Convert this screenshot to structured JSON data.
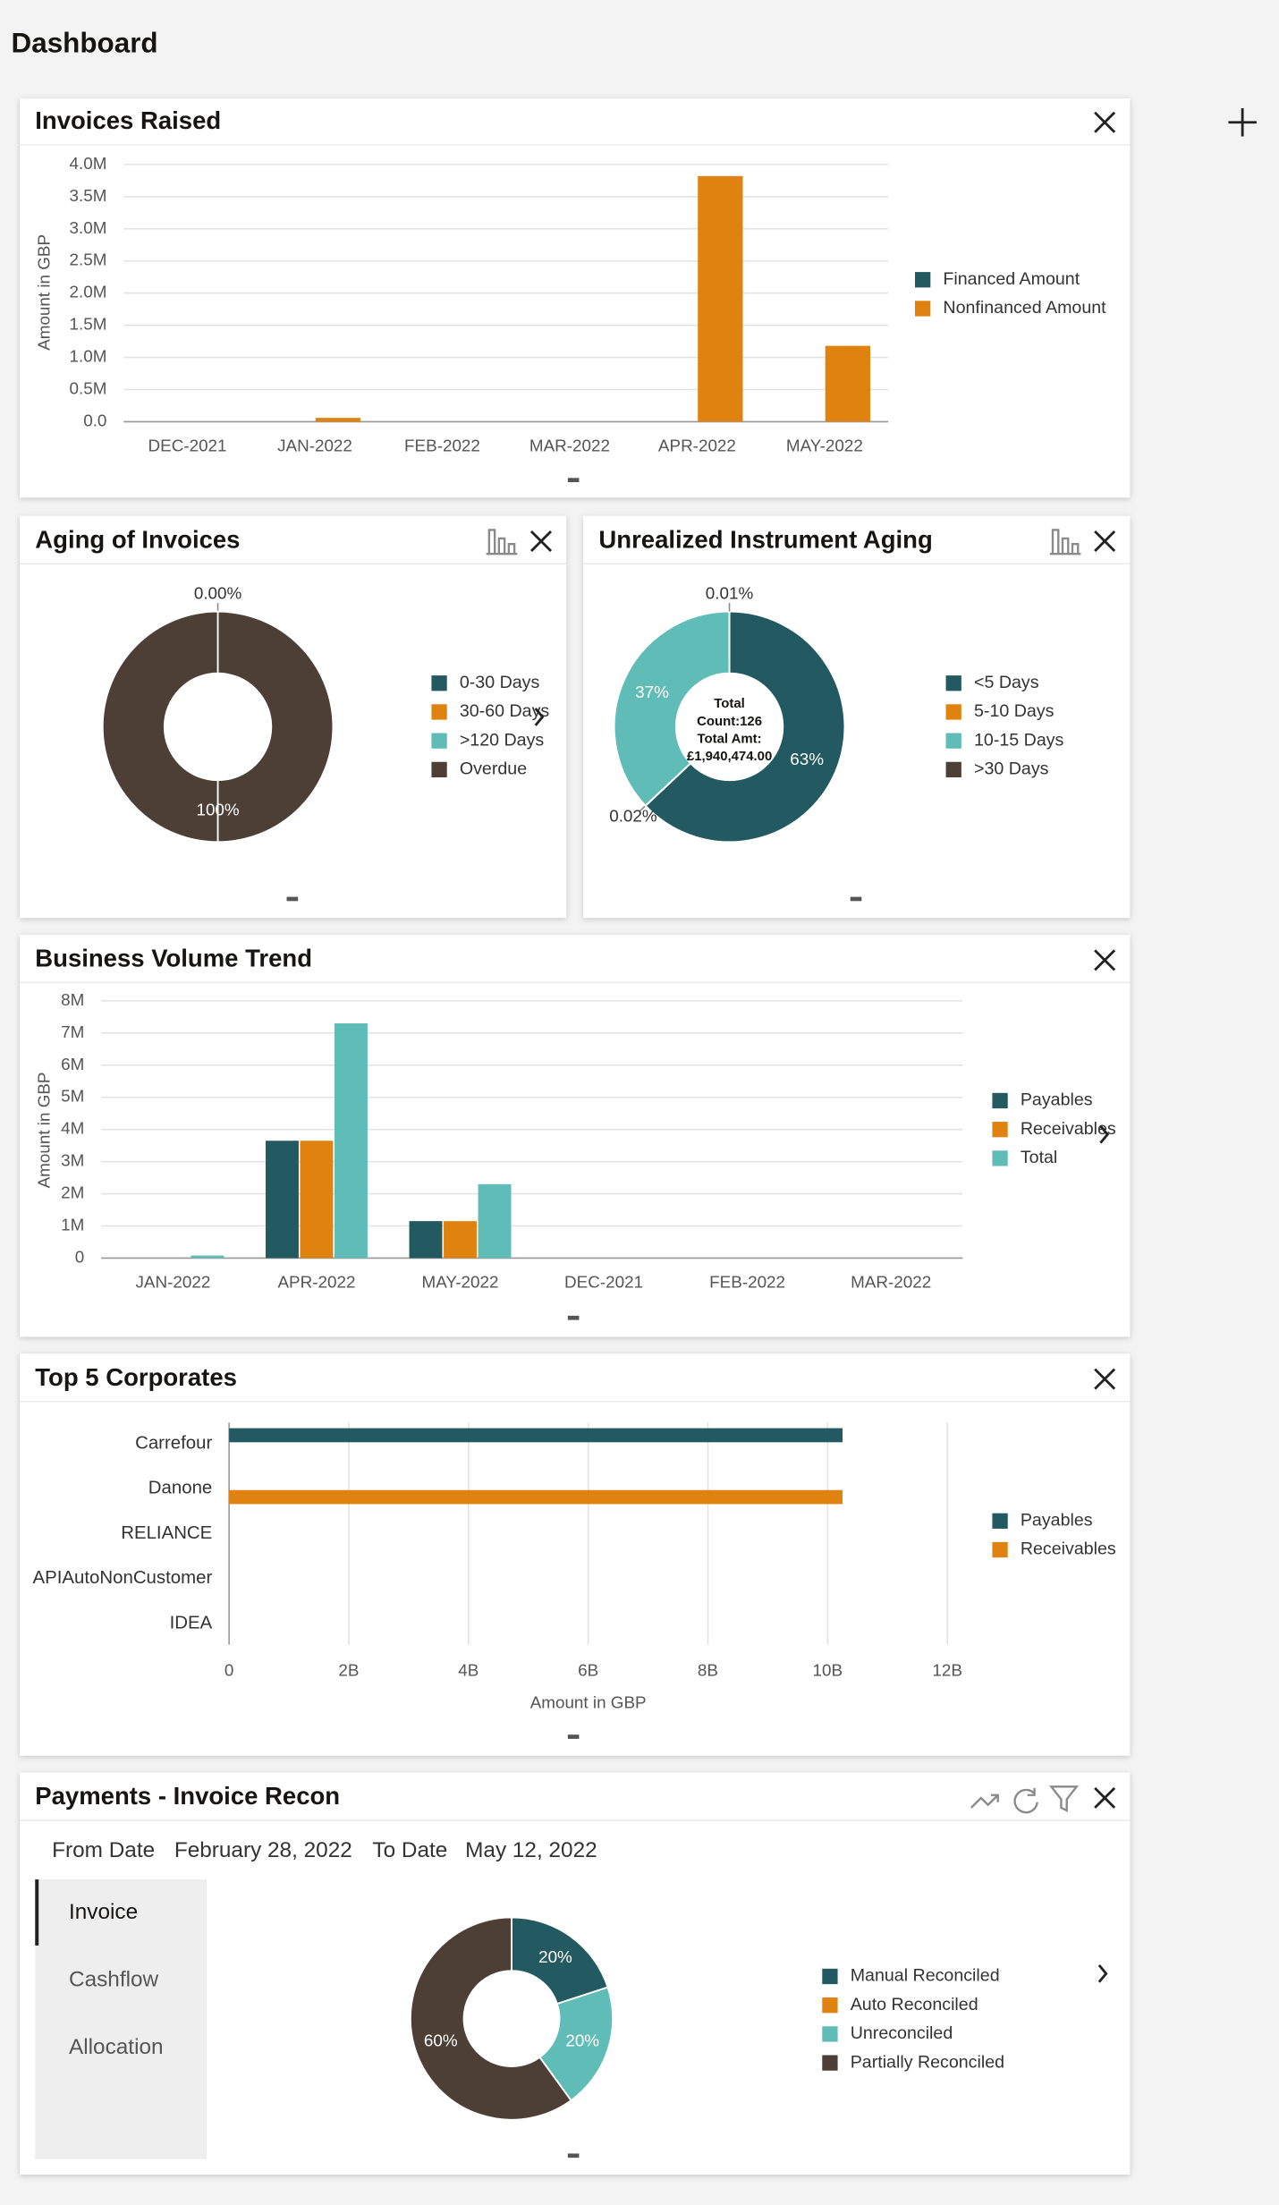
{
  "page_title": "Dashboard",
  "chart_data": [
    {
      "type": "bar",
      "title": "Invoices Raised",
      "y_label": "Amount in GBP",
      "categories": [
        "DEC-2021",
        "JAN-2022",
        "FEB-2022",
        "MAR-2022",
        "APR-2022",
        "MAY-2022"
      ],
      "series": [
        {
          "name": "Financed Amount",
          "color": "#235a61",
          "values": [
            0,
            0,
            0,
            0,
            0,
            0
          ]
        },
        {
          "name": "Nonfinanced Amount",
          "color": "#e0820f",
          "values": [
            0,
            60000,
            0,
            0,
            3820000,
            1180000
          ]
        }
      ],
      "ylim": [
        0,
        4000000
      ],
      "yticks": [
        {
          "value": 0,
          "label": "0.0"
        },
        {
          "value": 500000,
          "label": "0.5M"
        },
        {
          "value": 1000000,
          "label": "1.0M"
        },
        {
          "value": 1500000,
          "label": "1.5M"
        },
        {
          "value": 2000000,
          "label": "2.0M"
        },
        {
          "value": 2500000,
          "label": "2.5M"
        },
        {
          "value": 3000000,
          "label": "3.0M"
        },
        {
          "value": 3500000,
          "label": "3.5M"
        },
        {
          "value": 4000000,
          "label": "4.0M"
        }
      ],
      "grid": true,
      "legend": "right"
    },
    {
      "type": "donut",
      "title": "Aging of Invoices",
      "categories": [
        "0-30 Days",
        "30-60 Days",
        ">120 Days",
        "Overdue"
      ],
      "values": [
        0,
        0,
        0,
        100
      ],
      "value_labels": [
        "0.00%",
        null,
        null,
        "100%"
      ],
      "colors": [
        "#235a61",
        "#e0820f",
        "#5fbcb6",
        "#4d3f36"
      ],
      "legend": "right"
    },
    {
      "type": "donut",
      "title": "Unrealized Instrument Aging",
      "categories": [
        "<5 Days",
        "5-10 Days",
        "10-15 Days",
        ">30 Days"
      ],
      "values": [
        63,
        0.02,
        37,
        0.01
      ],
      "value_labels": [
        "63%",
        "0.02%",
        "37%",
        "0.01%"
      ],
      "colors": [
        "#235a61",
        "#e0820f",
        "#5fbcb6",
        "#4d3f36"
      ],
      "center_text": [
        "Total",
        "Count:126",
        "Total Amt:",
        "£1,940,474.00"
      ],
      "legend": "right"
    },
    {
      "type": "bar",
      "title": "Business Volume Trend",
      "y_label": "Amount in GBP",
      "categories": [
        "JAN-2022",
        "APR-2022",
        "MAY-2022",
        "DEC-2021",
        "FEB-2022",
        "MAR-2022"
      ],
      "series": [
        {
          "name": "Payables",
          "color": "#235a61",
          "values": [
            0,
            3650000,
            1150000,
            0,
            0,
            0
          ]
        },
        {
          "name": "Receivables",
          "color": "#e0820f",
          "values": [
            0,
            3650000,
            1150000,
            0,
            0,
            0
          ]
        },
        {
          "name": "Total",
          "color": "#5fbcb6",
          "values": [
            80000,
            7300000,
            2300000,
            0,
            0,
            0
          ]
        }
      ],
      "ylim": [
        0,
        8000000
      ],
      "yticks": [
        0,
        {
          "value": 1000000,
          "label": "1M"
        },
        {
          "value": 2000000,
          "label": "2M"
        },
        {
          "value": 3000000,
          "label": "3M"
        },
        {
          "value": 4000000,
          "label": "4M"
        },
        {
          "value": 5000000,
          "label": "5M"
        },
        {
          "value": 6000000,
          "label": "6M"
        },
        {
          "value": 7000000,
          "label": "7M"
        },
        {
          "value": 8000000,
          "label": "8M"
        }
      ],
      "grid": true,
      "legend": "right"
    },
    {
      "type": "hbar",
      "title": "Top 5 Corporates",
      "x_label": "Amount in GBP",
      "categories": [
        "Carrefour",
        "Danone",
        "RELIANCE",
        "APIAutoNonCustomer",
        "IDEA"
      ],
      "series": [
        {
          "name": "Payables",
          "color": "#235a61",
          "values": [
            10250000000,
            0,
            0,
            0,
            0
          ]
        },
        {
          "name": "Receivables",
          "color": "#e0820f",
          "values": [
            0,
            10250000000,
            0,
            0,
            0
          ]
        }
      ],
      "xlim": [
        0,
        12000000000
      ],
      "xticks": [
        0,
        {
          "value": 2000000000,
          "label": "2B"
        },
        {
          "value": 4000000000,
          "label": "4B"
        },
        {
          "value": 6000000000,
          "label": "6B"
        },
        {
          "value": 8000000000,
          "label": "8B"
        },
        {
          "value": 10000000000,
          "label": "10B"
        },
        {
          "value": 12000000000,
          "label": "12B"
        }
      ],
      "grid": true,
      "legend": "right"
    },
    {
      "type": "donut",
      "title": "Payments - Invoice Recon",
      "categories": [
        "Manual Reconciled",
        "Auto Reconciled",
        "Unreconciled",
        "Partially Reconciled"
      ],
      "values": [
        20,
        0,
        20,
        60
      ],
      "value_labels": [
        "20%",
        null,
        "20%",
        "60%"
      ],
      "colors": [
        "#235a61",
        "#e0820f",
        "#5fbcb6",
        "#4d3f36"
      ],
      "legend": "right"
    }
  ],
  "recon": {
    "from_label": "From Date",
    "from_date": "February 28, 2022",
    "to_label": "To Date",
    "to_date": "May 12, 2022",
    "tabs": [
      "Invoice",
      "Cashflow",
      "Allocation"
    ]
  }
}
